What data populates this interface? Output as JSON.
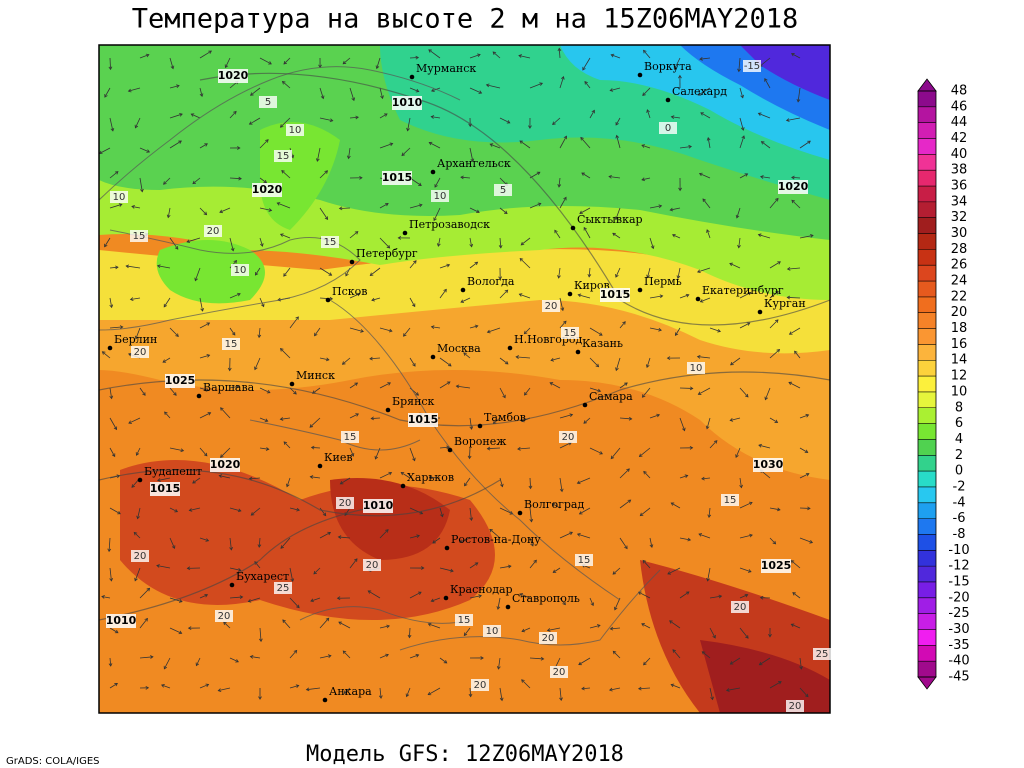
{
  "header": {
    "title": "Температура на высоте 2 м на 15Z06MAY2018"
  },
  "footer": {
    "model": "Модель GFS: 12Z06MAY2018",
    "credit": "GrADS: COLA/IGES"
  },
  "colorbar": {
    "labels": [
      "48",
      "46",
      "44",
      "42",
      "40",
      "38",
      "36",
      "34",
      "32",
      "30",
      "28",
      "26",
      "24",
      "22",
      "20",
      "18",
      "16",
      "14",
      "12",
      "10",
      "8",
      "6",
      "4",
      "2",
      "0",
      "-2",
      "-4",
      "-6",
      "-8",
      "-10",
      "-12",
      "-15",
      "-20",
      "-25",
      "-30",
      "-35",
      "-40",
      "-45"
    ],
    "colors": [
      "#8c0a8c",
      "#b414a0",
      "#d21eb4",
      "#e628c8",
      "#f03296",
      "#e6286e",
      "#c81e46",
      "#b41e32",
      "#a01e1e",
      "#b42814",
      "#c83214",
      "#dc461e",
      "#e65a1e",
      "#f06e1e",
      "#f58228",
      "#fa9632",
      "#fcb43c",
      "#fcd23c",
      "#fcf03c",
      "#e6f53c",
      "#aaf032",
      "#78e632",
      "#50d250",
      "#32d28c",
      "#28dcc8",
      "#28c8f0",
      "#1ea0f0",
      "#1e78f0",
      "#1e50e6",
      "#3232dc",
      "#5028dc",
      "#781ee6",
      "#a01ee6",
      "#c81ee6",
      "#f01ef0",
      "#d20ab4",
      "#a00a8c"
    ]
  },
  "map": {
    "cities": [
      {
        "label": "Мурманск"
      },
      {
        "label": "Воркута"
      },
      {
        "label": "Салехард"
      },
      {
        "label": "Архангельск"
      },
      {
        "label": "Сыктывкар"
      },
      {
        "label": "Петрозаводск"
      },
      {
        "label": "Петербург"
      },
      {
        "label": "Вологда"
      },
      {
        "label": "Киров"
      },
      {
        "label": "Пермь"
      },
      {
        "label": "Екатеринбург"
      },
      {
        "label": "Курган"
      },
      {
        "label": "Псков"
      },
      {
        "label": "Москва"
      },
      {
        "label": "Н.Новгород"
      },
      {
        "label": "Казань"
      },
      {
        "label": "Берлин"
      },
      {
        "label": "Варшава"
      },
      {
        "label": "Минск"
      },
      {
        "label": "Брянск"
      },
      {
        "label": "Тамбов"
      },
      {
        "label": "Самара"
      },
      {
        "label": "Киев"
      },
      {
        "label": "Воронеж"
      },
      {
        "label": "Харьков"
      },
      {
        "label": "Волгоград"
      },
      {
        "label": "Будапешт"
      },
      {
        "label": "Ростов-на-Дону"
      },
      {
        "label": "Бухарест"
      },
      {
        "label": "Краснодар"
      },
      {
        "label": "Ставрополь"
      },
      {
        "label": "Анкара"
      }
    ],
    "isobar_labels": [
      "1020",
      "1010",
      "1015",
      "1020",
      "1015",
      "1020",
      "1025",
      "1015",
      "1020",
      "1015",
      "1010",
      "1030",
      "1025",
      "1010"
    ],
    "isotherm_labels": [
      "-15",
      "0",
      "5",
      "10",
      "15",
      "10",
      "5",
      "10",
      "20",
      "15",
      "15",
      "10",
      "20",
      "10",
      "15",
      "15",
      "15",
      "20",
      "20",
      "20",
      "15",
      "20",
      "20",
      "20",
      "15",
      "10",
      "20",
      "15",
      "20",
      "20",
      "20",
      "25",
      "20",
      "25"
    ]
  }
}
